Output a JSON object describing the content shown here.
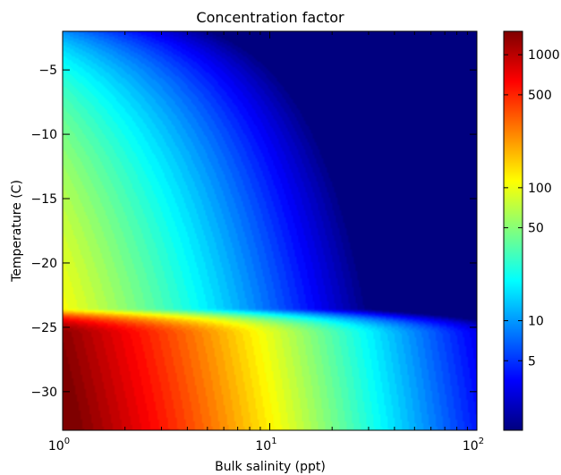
{
  "chart_data": {
    "type": "heatmap",
    "title": "Concentration factor",
    "xlabel": "Bulk salinity (ppt)",
    "ylabel": "Temperature (C)",
    "x_scale": "log",
    "xlim": [
      1,
      100
    ],
    "ylim": [
      -33,
      -2
    ],
    "x_ticks": [
      {
        "value": 1,
        "base": "10",
        "exp": "0"
      },
      {
        "value": 10,
        "base": "10",
        "exp": "1"
      },
      {
        "value": 100,
        "base": "10",
        "exp": "2"
      }
    ],
    "y_ticks": [
      {
        "value": -5,
        "label": "−5"
      },
      {
        "value": -10,
        "label": "−10"
      },
      {
        "value": -15,
        "label": "−15"
      },
      {
        "value": -20,
        "label": "−20"
      },
      {
        "value": -25,
        "label": "−25"
      },
      {
        "value": -30,
        "label": "−30"
      }
    ],
    "colorbar": {
      "scale": "log",
      "range": [
        1.5,
        1500
      ],
      "ticks": [
        {
          "value": 1000,
          "label": "1000"
        },
        {
          "value": 500,
          "label": "500"
        },
        {
          "value": 100,
          "label": "100"
        },
        {
          "value": 50,
          "label": "50"
        },
        {
          "value": 10,
          "label": "10"
        },
        {
          "value": 5,
          "label": "5"
        }
      ],
      "colormap": "jet",
      "colors": [
        "#00007f",
        "#0000ff",
        "#007fff",
        "#00ffff",
        "#7fff7f",
        "#ffff00",
        "#ff7f00",
        "#ff0000",
        "#7f0000"
      ]
    }
  }
}
